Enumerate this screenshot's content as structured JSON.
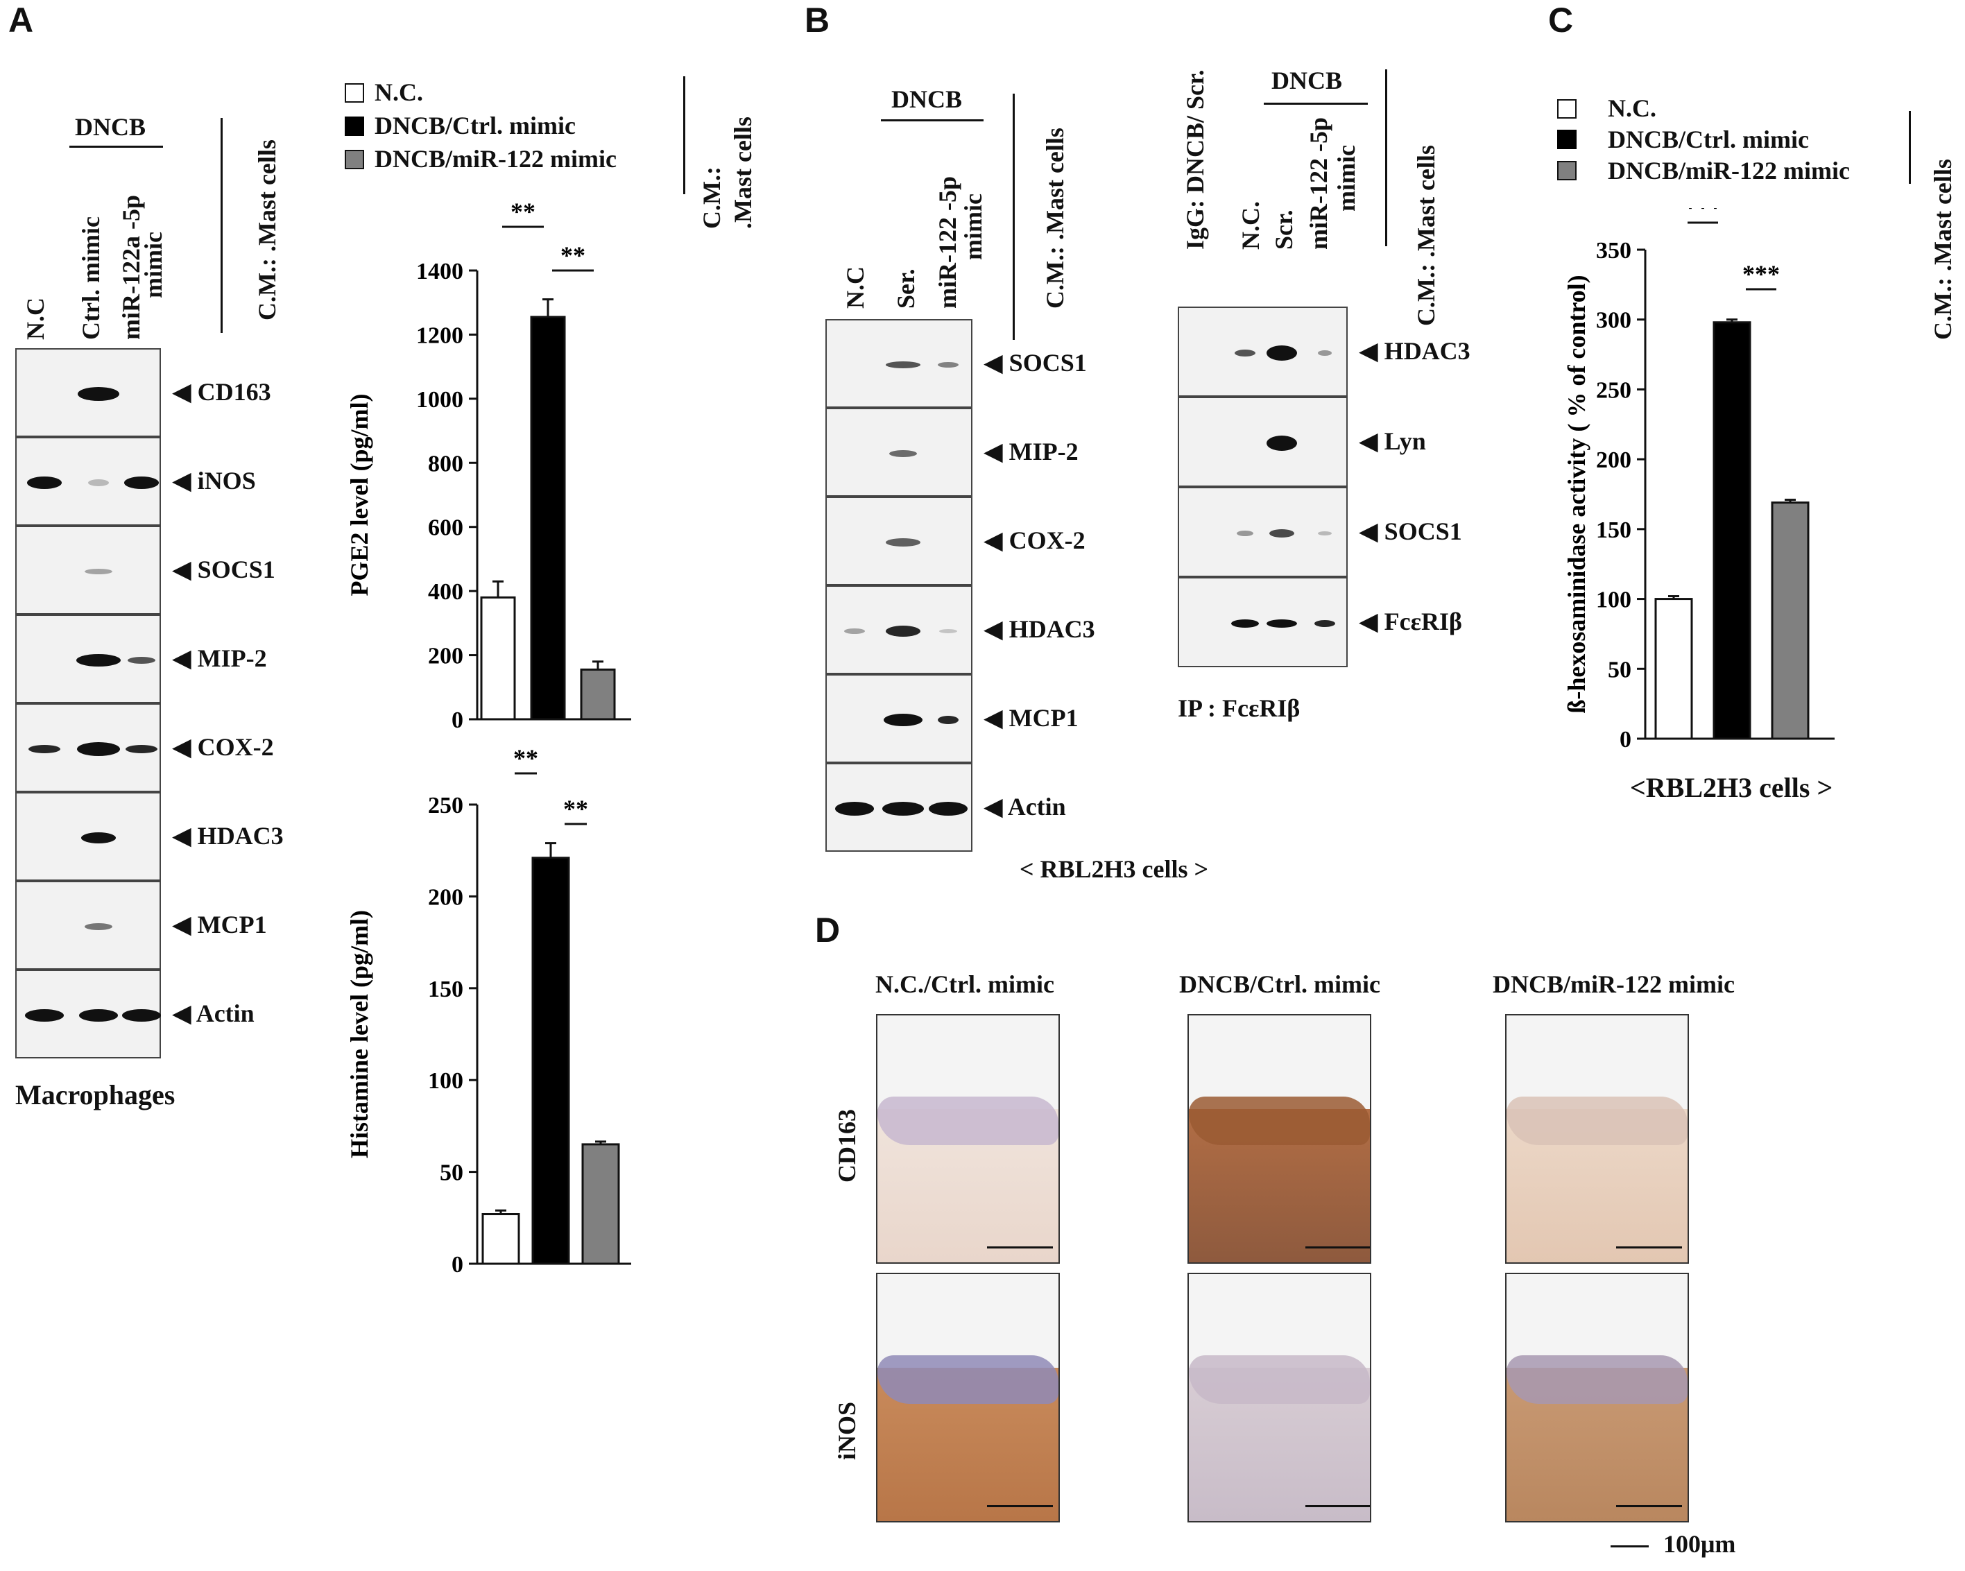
{
  "panel_letters": {
    "a": "A",
    "b": "B",
    "c": "C",
    "d": "D"
  },
  "panelA": {
    "dncb": "DNCB",
    "lanes": [
      "N.C",
      "Ctrl. mimic",
      "miR-122a -5p",
      "mimic"
    ],
    "side_label": "C.M.: .Mast cells",
    "proteins": [
      "CD163",
      "iNOS",
      "SOCS1",
      "MIP-2",
      "COX-2",
      "HDAC3",
      "MCP1",
      "Actin"
    ],
    "footer": "Macrophages",
    "legend": [
      "N.C.",
      "DNCB/Ctrl. mimic",
      "DNCB/miR-122 mimic"
    ],
    "legend_side_label": [
      "C.M.:",
      ".Mast cells"
    ]
  },
  "panelB": {
    "dncb": "DNCB",
    "lanes_left": [
      "N.C",
      "Ser.",
      "miR-122 -5p",
      "mimic"
    ],
    "side_label": "C.M.: .Mast cells",
    "proteins_left": [
      "SOCS1",
      "MIP-2",
      "COX-2",
      "HDAC3",
      "MCP1",
      "Actin"
    ],
    "footer": "< RBL2H3 cells >",
    "dncb_right": "DNCB",
    "lanes_right": [
      "IgG: DNCB/ Scr.",
      "N.C.",
      "Scr.",
      "miR-122 -5p",
      "mimic"
    ],
    "proteins_right": [
      "HDAC3",
      "Lyn",
      "SOCS1",
      "FcεRIβ"
    ],
    "ip_label": "IP : FcεRIβ"
  },
  "panelC": {
    "legend": [
      "N.C.",
      "DNCB/Ctrl. mimic",
      "DNCB/miR-122 mimic"
    ],
    "side_label": "C.M.: .Mast cells",
    "footer": "<RBL2H3 cells >"
  },
  "panelD": {
    "columns": [
      "N.C./Ctrl. mimic",
      "DNCB/Ctrl. mimic",
      "DNCB/miR-122 mimic"
    ],
    "rows": [
      "CD163",
      "iNOS"
    ],
    "scale": "100μm"
  },
  "chart_data": [
    {
      "type": "bar",
      "id": "pge2",
      "ylabel": "PGE2 level (pg/ml)",
      "ylim": [
        0,
        1400
      ],
      "yticks": [
        0,
        200,
        400,
        600,
        800,
        1000,
        1200,
        1400
      ],
      "categories": [
        "N.C.",
        "DNCB/Ctrl. mimic",
        "DNCB/miR-122 mimic"
      ],
      "values": [
        380,
        1255,
        155
      ],
      "errors": [
        50,
        55,
        25
      ],
      "fills": [
        "#ffffff",
        "#000000",
        "#808080"
      ],
      "sig": [
        {
          "from": 0,
          "to": 1,
          "label": "**"
        },
        {
          "from": 1,
          "to": 2,
          "label": "**"
        }
      ]
    },
    {
      "type": "bar",
      "id": "histamine",
      "ylabel": "Histamine level (pg/ml)",
      "ylim": [
        0,
        250
      ],
      "yticks": [
        0,
        50,
        100,
        150,
        200,
        250
      ],
      "categories": [
        "N.C.",
        "DNCB/Ctrl. mimic",
        "DNCB/miR-122 mimic"
      ],
      "values": [
        27,
        221,
        65
      ],
      "errors": [
        2,
        8,
        1.5
      ],
      "fills": [
        "#ffffff",
        "#000000",
        "#808080"
      ],
      "sig": [
        {
          "from": 0,
          "to": 1,
          "label": "**"
        },
        {
          "from": 1,
          "to": 2,
          "label": "**"
        }
      ]
    },
    {
      "type": "bar",
      "id": "hexosaminidase",
      "ylabel": "ß-hexosaminidase activity ( % of control)",
      "ylim": [
        0,
        350
      ],
      "yticks": [
        0,
        50,
        100,
        150,
        200,
        250,
        300,
        350
      ],
      "categories": [
        "N.C.",
        "DNCB/Ctrl. mimic",
        "DNCB/miR-122 mimic"
      ],
      "values": [
        100,
        298,
        169
      ],
      "errors": [
        2,
        2,
        2
      ],
      "fills": [
        "#ffffff",
        "#000000",
        "#808080"
      ],
      "sig": [
        {
          "from": 0,
          "to": 1,
          "label": "***"
        },
        {
          "from": 1,
          "to": 2,
          "label": "***"
        }
      ]
    }
  ]
}
